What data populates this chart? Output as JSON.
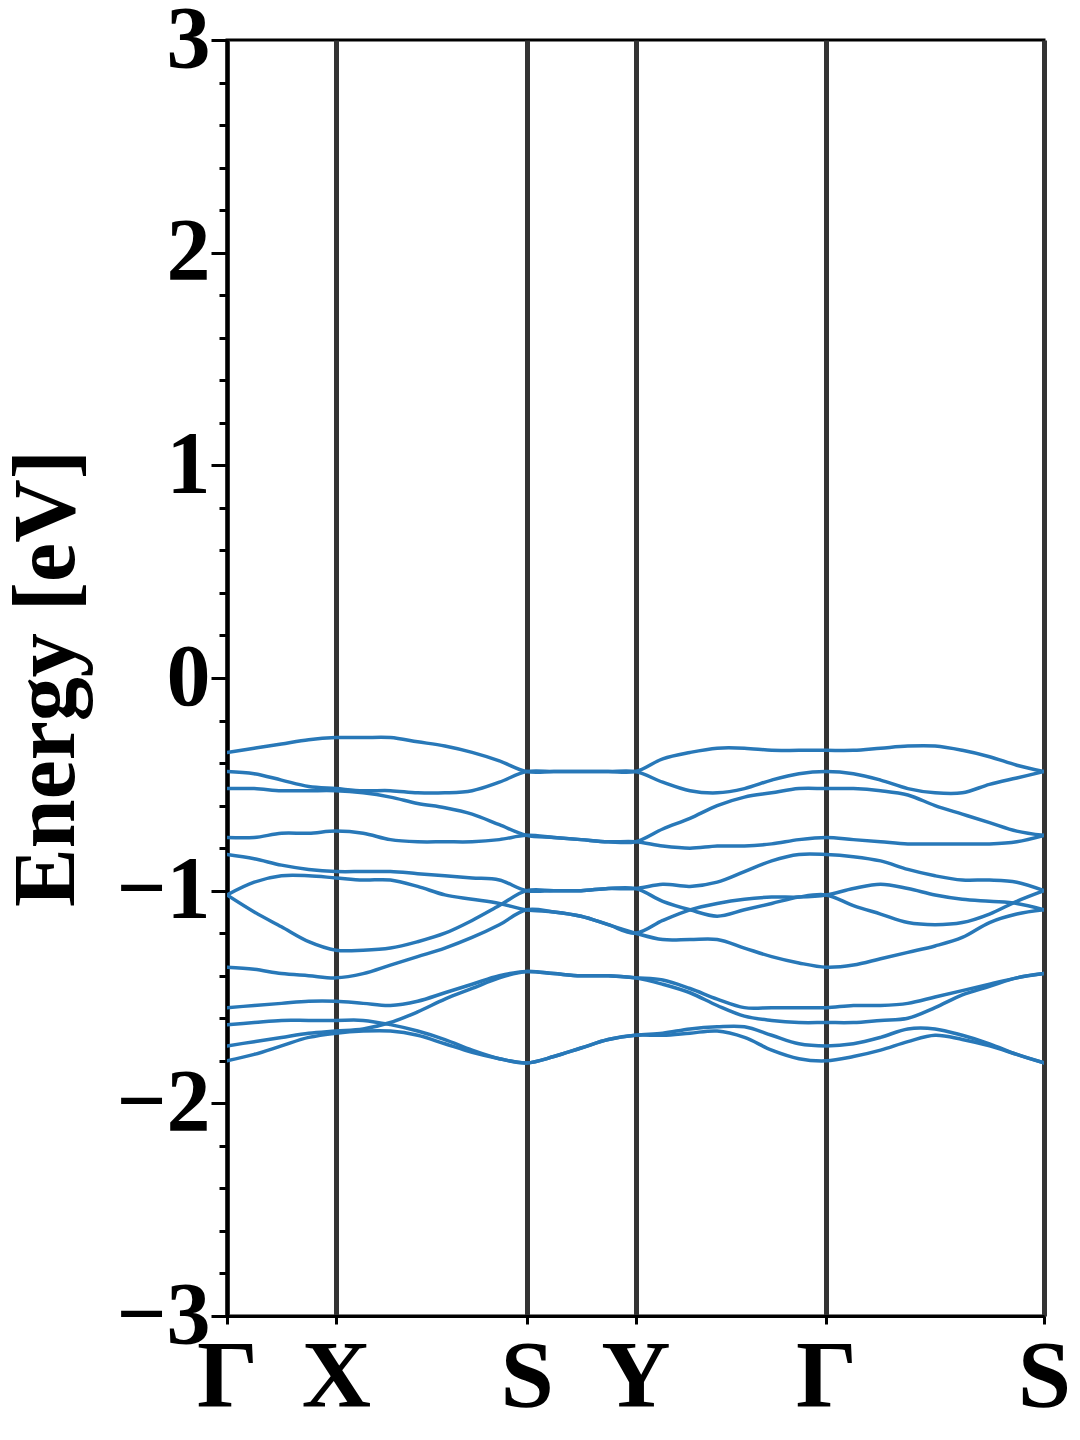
{
  "chart_data": {
    "type": "line",
    "ylabel": "Energy [eV]",
    "categories": [
      "Γ",
      null,
      null,
      null,
      "X",
      null,
      null,
      null,
      null,
      null,
      null,
      "S",
      null,
      null,
      null,
      "Y",
      null,
      null,
      null,
      null,
      null,
      null,
      "Γ",
      null,
      null,
      null,
      null,
      null,
      null,
      null,
      "S"
    ],
    "ylim": [
      -3,
      3
    ],
    "yticks": [
      {
        "value": -3,
        "label": "−3"
      },
      {
        "value": -2.8,
        "label": null
      },
      {
        "value": -2.6,
        "label": null
      },
      {
        "value": -2.4,
        "label": null
      },
      {
        "value": -2.2,
        "label": null
      },
      {
        "value": -2,
        "label": "−2"
      },
      {
        "value": -1.8,
        "label": null
      },
      {
        "value": -1.6,
        "label": null
      },
      {
        "value": -1.4,
        "label": null
      },
      {
        "value": -1.2,
        "label": null
      },
      {
        "value": -1,
        "label": "−1"
      },
      {
        "value": -0.8,
        "label": null
      },
      {
        "value": -0.6,
        "label": null
      },
      {
        "value": -0.4,
        "label": null
      },
      {
        "value": -0.2,
        "label": null
      },
      0,
      {
        "value": 0.2,
        "label": null
      },
      {
        "value": 0.4,
        "label": null
      },
      {
        "value": 0.6,
        "label": null
      },
      {
        "value": 0.8,
        "label": null
      },
      1,
      {
        "value": 1.2,
        "label": null
      },
      {
        "value": 1.4,
        "label": null
      },
      {
        "value": 1.6,
        "label": null
      },
      {
        "value": 1.8,
        "label": null
      },
      2,
      {
        "value": 2.2,
        "label": null
      },
      {
        "value": 2.4,
        "label": null
      },
      {
        "value": 2.6,
        "label": null
      },
      {
        "value": 2.8,
        "label": null
      },
      3
    ],
    "grid": "x",
    "legend": false,
    "series": [
      {
        "color": "#2878b8",
        "values": [
          -0.35,
          -0.33,
          -0.31,
          -0.29,
          -0.28,
          -0.28,
          -0.28,
          -0.3,
          -0.32,
          -0.35,
          -0.39,
          -0.44,
          -0.44,
          -0.44,
          -0.44,
          -0.44,
          -0.38,
          -0.35,
          -0.33,
          -0.33,
          -0.34,
          -0.34,
          -0.34,
          -0.34,
          -0.33,
          -0.32,
          -0.32,
          -0.34,
          -0.37,
          -0.41,
          -0.44
        ]
      },
      {
        "color": "#2878b8",
        "values": [
          -0.44,
          -0.45,
          -0.48,
          -0.51,
          -0.52,
          -0.53,
          -0.53,
          -0.54,
          -0.54,
          -0.53,
          -0.49,
          -0.44,
          -0.44,
          -0.44,
          -0.44,
          -0.44,
          -0.49,
          -0.53,
          -0.54,
          -0.52,
          -0.48,
          -0.45,
          -0.44,
          -0.45,
          -0.48,
          -0.52,
          -0.54,
          -0.54,
          -0.5,
          -0.47,
          -0.44
        ]
      },
      {
        "color": "#2878b8",
        "values": [
          -0.52,
          -0.52,
          -0.53,
          -0.53,
          -0.53,
          -0.54,
          -0.56,
          -0.59,
          -0.61,
          -0.64,
          -0.69,
          -0.74,
          -0.75,
          -0.76,
          -0.77,
          -0.77,
          -0.71,
          -0.66,
          -0.6,
          -0.56,
          -0.54,
          -0.52,
          -0.52,
          -0.52,
          -0.53,
          -0.55,
          -0.6,
          -0.64,
          -0.68,
          -0.72,
          -0.74
        ]
      },
      {
        "color": "#2878b8",
        "values": [
          -0.75,
          -0.75,
          -0.73,
          -0.73,
          -0.72,
          -0.73,
          -0.76,
          -0.77,
          -0.77,
          -0.77,
          -0.76,
          -0.74,
          -0.75,
          -0.76,
          -0.77,
          -0.77,
          -0.79,
          -0.8,
          -0.79,
          -0.79,
          -0.78,
          -0.76,
          -0.75,
          -0.76,
          -0.77,
          -0.78,
          -0.78,
          -0.78,
          -0.78,
          -0.77,
          -0.74
        ]
      },
      {
        "color": "#2878b8",
        "values": [
          -0.83,
          -0.85,
          -0.88,
          -0.9,
          -0.91,
          -0.91,
          -0.91,
          -0.92,
          -0.93,
          -0.94,
          -0.95,
          -1.0,
          -1.0,
          -1.0,
          -0.99,
          -0.99,
          -0.97,
          -0.98,
          -0.96,
          -0.91,
          -0.86,
          -0.83,
          -0.83,
          -0.84,
          -0.86,
          -0.9,
          -0.93,
          -0.95,
          -0.95,
          -0.96,
          -1.0
        ]
      },
      {
        "color": "#2878b8",
        "values": [
          -1.02,
          -0.96,
          -0.93,
          -0.93,
          -0.94,
          -0.95,
          -0.95,
          -0.98,
          -1.02,
          -1.04,
          -1.06,
          -1.09,
          -1.1,
          -1.12,
          -1.16,
          -1.2,
          -1.14,
          -1.09,
          -1.06,
          -1.04,
          -1.03,
          -1.03,
          -1.02,
          -0.99,
          -0.97,
          -0.99,
          -1.02,
          -1.04,
          -1.05,
          -1.06,
          -1.09
        ]
      },
      {
        "color": "#2878b8",
        "values": [
          -1.02,
          -1.1,
          -1.17,
          -1.24,
          -1.28,
          -1.28,
          -1.27,
          -1.24,
          -1.2,
          -1.14,
          -1.07,
          -1.0,
          -1.0,
          -1.0,
          -0.99,
          -0.99,
          -1.05,
          -1.09,
          -1.12,
          -1.09,
          -1.06,
          -1.03,
          -1.02,
          -1.07,
          -1.11,
          -1.15,
          -1.16,
          -1.15,
          -1.11,
          -1.05,
          -1.0
        ]
      },
      {
        "color": "#2878b8",
        "values": [
          -1.36,
          -1.37,
          -1.39,
          -1.4,
          -1.41,
          -1.39,
          -1.35,
          -1.31,
          -1.27,
          -1.22,
          -1.16,
          -1.09,
          -1.1,
          -1.12,
          -1.16,
          -1.2,
          -1.23,
          -1.23,
          -1.23,
          -1.27,
          -1.31,
          -1.34,
          -1.36,
          -1.35,
          -1.32,
          -1.29,
          -1.26,
          -1.22,
          -1.15,
          -1.11,
          -1.09
        ]
      },
      {
        "color": "#2878b8",
        "values": [
          -1.55,
          -1.54,
          -1.53,
          -1.52,
          -1.52,
          -1.53,
          -1.54,
          -1.52,
          -1.48,
          -1.44,
          -1.4,
          -1.38,
          -1.39,
          -1.4,
          -1.4,
          -1.41,
          -1.42,
          -1.46,
          -1.51,
          -1.55,
          -1.55,
          -1.55,
          -1.55,
          -1.54,
          -1.54,
          -1.53,
          -1.5,
          -1.47,
          -1.44,
          -1.41,
          -1.39
        ]
      },
      {
        "color": "#2878b8",
        "values": [
          -1.73,
          -1.71,
          -1.69,
          -1.67,
          -1.66,
          -1.65,
          -1.62,
          -1.57,
          -1.51,
          -1.46,
          -1.41,
          -1.38,
          -1.39,
          -1.4,
          -1.4,
          -1.41,
          -1.44,
          -1.48,
          -1.54,
          -1.59,
          -1.61,
          -1.62,
          -1.62,
          -1.62,
          -1.61,
          -1.6,
          -1.55,
          -1.49,
          -1.45,
          -1.41,
          -1.39
        ]
      },
      {
        "color": "#2878b8",
        "values": [
          -1.63,
          -1.62,
          -1.61,
          -1.61,
          -1.61,
          -1.61,
          -1.63,
          -1.66,
          -1.7,
          -1.75,
          -1.79,
          -1.81,
          -1.78,
          -1.74,
          -1.7,
          -1.68,
          -1.67,
          -1.65,
          -1.64,
          -1.64,
          -1.68,
          -1.72,
          -1.73,
          -1.72,
          -1.69,
          -1.65,
          -1.65,
          -1.68,
          -1.72,
          -1.77,
          -1.81
        ]
      },
      {
        "color": "#2878b8",
        "values": [
          -1.8,
          -1.77,
          -1.73,
          -1.69,
          -1.67,
          -1.66,
          -1.66,
          -1.68,
          -1.72,
          -1.76,
          -1.79,
          -1.81,
          -1.78,
          -1.74,
          -1.7,
          -1.68,
          -1.68,
          -1.67,
          -1.66,
          -1.69,
          -1.75,
          -1.79,
          -1.8,
          -1.78,
          -1.75,
          -1.71,
          -1.68,
          -1.7,
          -1.73,
          -1.77,
          -1.81
        ]
      }
    ]
  }
}
